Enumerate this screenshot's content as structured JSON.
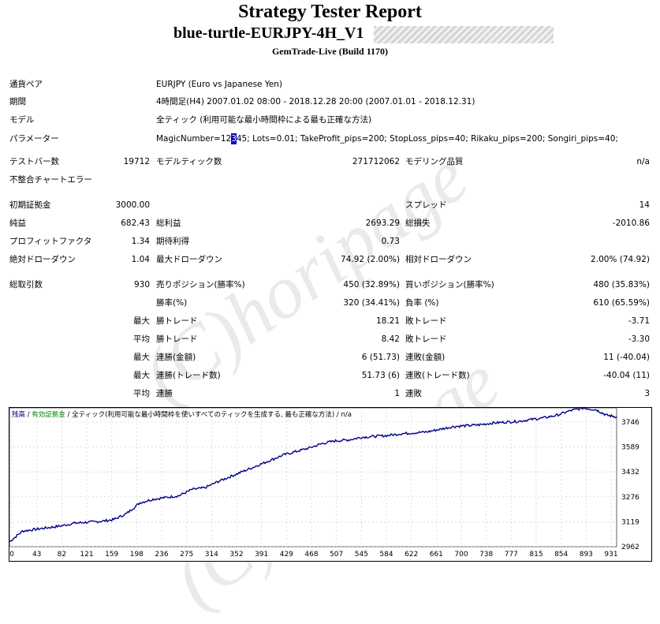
{
  "header": {
    "title": "Strategy Tester Report",
    "ea_name": "blue-turtle-EURJPY-4H_V1",
    "server": "GemTrade-Live (Build 1170)"
  },
  "info": [
    {
      "label": "通貨ペア",
      "value": "EURJPY (Euro vs Japanese Yen)"
    },
    {
      "label": "期間",
      "value": "4時間足(H4) 2007.01.02 08:00 - 2018.12.28 20:00 (2007.01.01 - 2018.12.31)"
    },
    {
      "label": "モデル",
      "value": "全ティック (利用可能な最小時間枠による最も正確な方法)"
    },
    {
      "label": "パラメーター",
      "value_pre": "MagicNumber=12",
      "value_caret": "3",
      "value_post": "45; Lots=0.01; TakeProfit_pips=200; StopLoss_pips=40; Rikaku_pips=200; Songiri_pips=40;"
    }
  ],
  "bars": {
    "label": "テストバー数",
    "value": "19712"
  },
  "ticks": {
    "label": "モデルティック数",
    "value": "271712062"
  },
  "quality": {
    "label": "モデリング品質",
    "value": "n/a"
  },
  "mismatch": {
    "label": "不整合チャートエラー"
  },
  "deposit": {
    "label": "初期証拠金",
    "value": "3000.00"
  },
  "spread": {
    "label": "スプレッド",
    "value": "14"
  },
  "net": {
    "label": "純益",
    "value": "682.43"
  },
  "gross_profit": {
    "label": "総利益",
    "value": "2693.29"
  },
  "gross_loss": {
    "label": "総損失",
    "value": "-2010.86"
  },
  "pf": {
    "label": "プロフィットファクタ",
    "value": "1.34"
  },
  "expected": {
    "label": "期待利得",
    "value": "0.73"
  },
  "abs_dd": {
    "label": "絶対ドローダウン",
    "value": "1.04"
  },
  "max_dd": {
    "label": "最大ドローダウン",
    "value": "74.92 (2.00%)"
  },
  "rel_dd": {
    "label": "相対ドローダウン",
    "value": "2.00% (74.92)"
  },
  "trades": {
    "label": "総取引数",
    "value": "930"
  },
  "short": {
    "label": "売りポジション(勝率%)",
    "value": "450 (32.89%)"
  },
  "long": {
    "label": "買いポジション(勝率%)",
    "value": "480 (35.83%)"
  },
  "winrate": {
    "label": "勝率(%)",
    "value": "320 (34.41%)"
  },
  "lossrate": {
    "label": "負率 (%)",
    "value": "610 (65.59%)"
  },
  "rows": [
    {
      "pre": "最大",
      "l1": "勝トレード",
      "v1": "18.21",
      "l2": "敗トレード",
      "v2": "-3.71"
    },
    {
      "pre": "平均",
      "l1": "勝トレード",
      "v1": "8.42",
      "l2": "敗トレード",
      "v2": "-3.30"
    },
    {
      "pre": "最大",
      "l1": "連勝(金額)",
      "v1": "6 (51.73)",
      "l2": "連敗(金額)",
      "v2": "11 (-40.04)"
    },
    {
      "pre": "最大",
      "l1": "連勝(トレード数)",
      "v1": "51.73 (6)",
      "l2": "連敗(トレード数)",
      "v2": "-40.04 (11)"
    },
    {
      "pre": "平均",
      "l1": "連勝",
      "v1": "1",
      "l2": "連敗",
      "v2": "3"
    }
  ],
  "watermark": "(C)horipage",
  "chart_legend": {
    "balance": "残高",
    "equity": "有効証拠金",
    "model": "全ティック(利用可能な最小時間枠を使いすべてのティックを生成する, 最も正確な方法)",
    "quality": "n/a"
  },
  "chart_data": {
    "type": "line",
    "x_ticks": [
      "0",
      "43",
      "82",
      "121",
      "159",
      "198",
      "236",
      "275",
      "314",
      "352",
      "391",
      "429",
      "468",
      "507",
      "545",
      "584",
      "622",
      "661",
      "700",
      "738",
      "777",
      "815",
      "854",
      "893",
      "931"
    ],
    "y_ticks": [
      "3746",
      "3589",
      "3432",
      "3276",
      "3119",
      "2962"
    ],
    "ylim": [
      2962,
      3746
    ],
    "xlim": [
      0,
      931
    ],
    "color": "#00008b",
    "series": [
      {
        "values": [
          [
            0,
            2990
          ],
          [
            20,
            3050
          ],
          [
            40,
            3060
          ],
          [
            60,
            3070
          ],
          [
            80,
            3080
          ],
          [
            100,
            3095
          ],
          [
            120,
            3100
          ],
          [
            140,
            3105
          ],
          [
            160,
            3115
          ],
          [
            180,
            3150
          ],
          [
            200,
            3210
          ],
          [
            220,
            3230
          ],
          [
            240,
            3240
          ],
          [
            260,
            3250
          ],
          [
            280,
            3285
          ],
          [
            300,
            3295
          ],
          [
            320,
            3330
          ],
          [
            340,
            3360
          ],
          [
            360,
            3390
          ],
          [
            380,
            3420
          ],
          [
            400,
            3450
          ],
          [
            420,
            3480
          ],
          [
            440,
            3500
          ],
          [
            460,
            3520
          ],
          [
            480,
            3545
          ],
          [
            500,
            3560
          ],
          [
            520,
            3565
          ],
          [
            540,
            3580
          ],
          [
            560,
            3585
          ],
          [
            580,
            3590
          ],
          [
            600,
            3600
          ],
          [
            620,
            3605
          ],
          [
            640,
            3610
          ],
          [
            660,
            3625
          ],
          [
            680,
            3640
          ],
          [
            700,
            3645
          ],
          [
            720,
            3650
          ],
          [
            740,
            3660
          ],
          [
            760,
            3665
          ],
          [
            780,
            3670
          ],
          [
            800,
            3680
          ],
          [
            820,
            3690
          ],
          [
            840,
            3705
          ],
          [
            860,
            3730
          ],
          [
            880,
            3745
          ],
          [
            900,
            3735
          ],
          [
            915,
            3705
          ],
          [
            931,
            3695
          ]
        ]
      }
    ]
  }
}
